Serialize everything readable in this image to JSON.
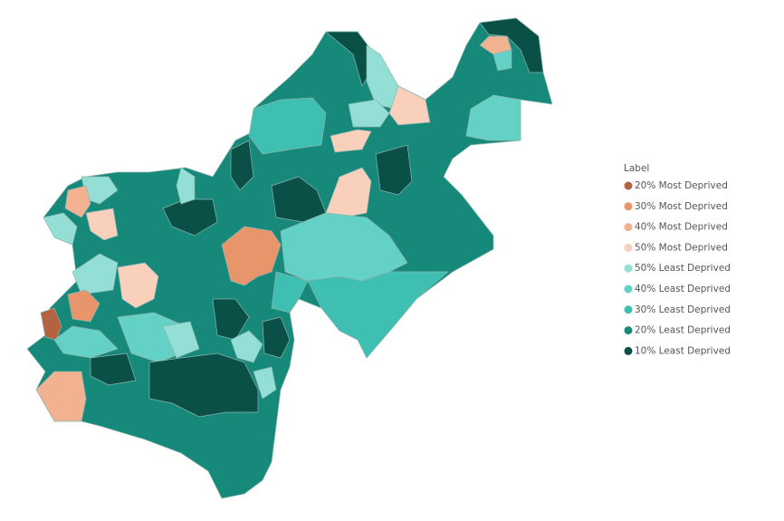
{
  "legend": {
    "title": "Label",
    "items": [
      {
        "label": "20% Most Deprived",
        "color": "#b4623f"
      },
      {
        "label": "30% Most Deprived",
        "color": "#e8956b"
      },
      {
        "label": "40% Most Deprived",
        "color": "#f2b292"
      },
      {
        "label": "50% Most Deprived",
        "color": "#f8d0bc"
      },
      {
        "label": "50% Least Deprived",
        "color": "#93ded5"
      },
      {
        "label": "40% Least Deprived",
        "color": "#63d1c5"
      },
      {
        "label": "30% Least Deprived",
        "color": "#3ebfb1"
      },
      {
        "label": "20% Least Deprived",
        "color": "#17897b"
      },
      {
        "label": "10% Least Deprived",
        "color": "#0b5047"
      }
    ]
  }
}
